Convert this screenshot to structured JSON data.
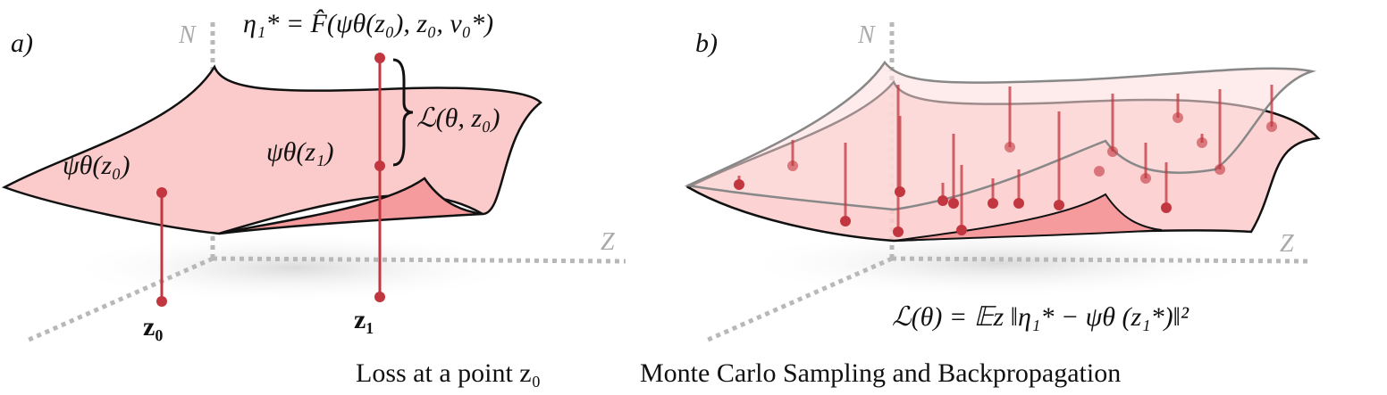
{
  "panel_a": {
    "label": "a)",
    "axis_n": "N",
    "axis_z": "Z",
    "target": "η₁* = F̂(ψθ(z₀), z₀, v₀*)",
    "loss": "ℒ(θ, z₀)",
    "psi_z0": "ψθ(z₀)",
    "psi_z1": "ψθ(z₁)",
    "z0": "z₀",
    "z1": "z₁",
    "caption": "Loss at a point z₀"
  },
  "panel_b": {
    "label": "b)",
    "axis_n": "N",
    "axis_z": "Z",
    "loss": "ℒ(θ) = 𝔼z ‖η₁* − ψθ (z₁*)‖²",
    "caption": "Monte Carlo Sampling and Backpropagation"
  }
}
